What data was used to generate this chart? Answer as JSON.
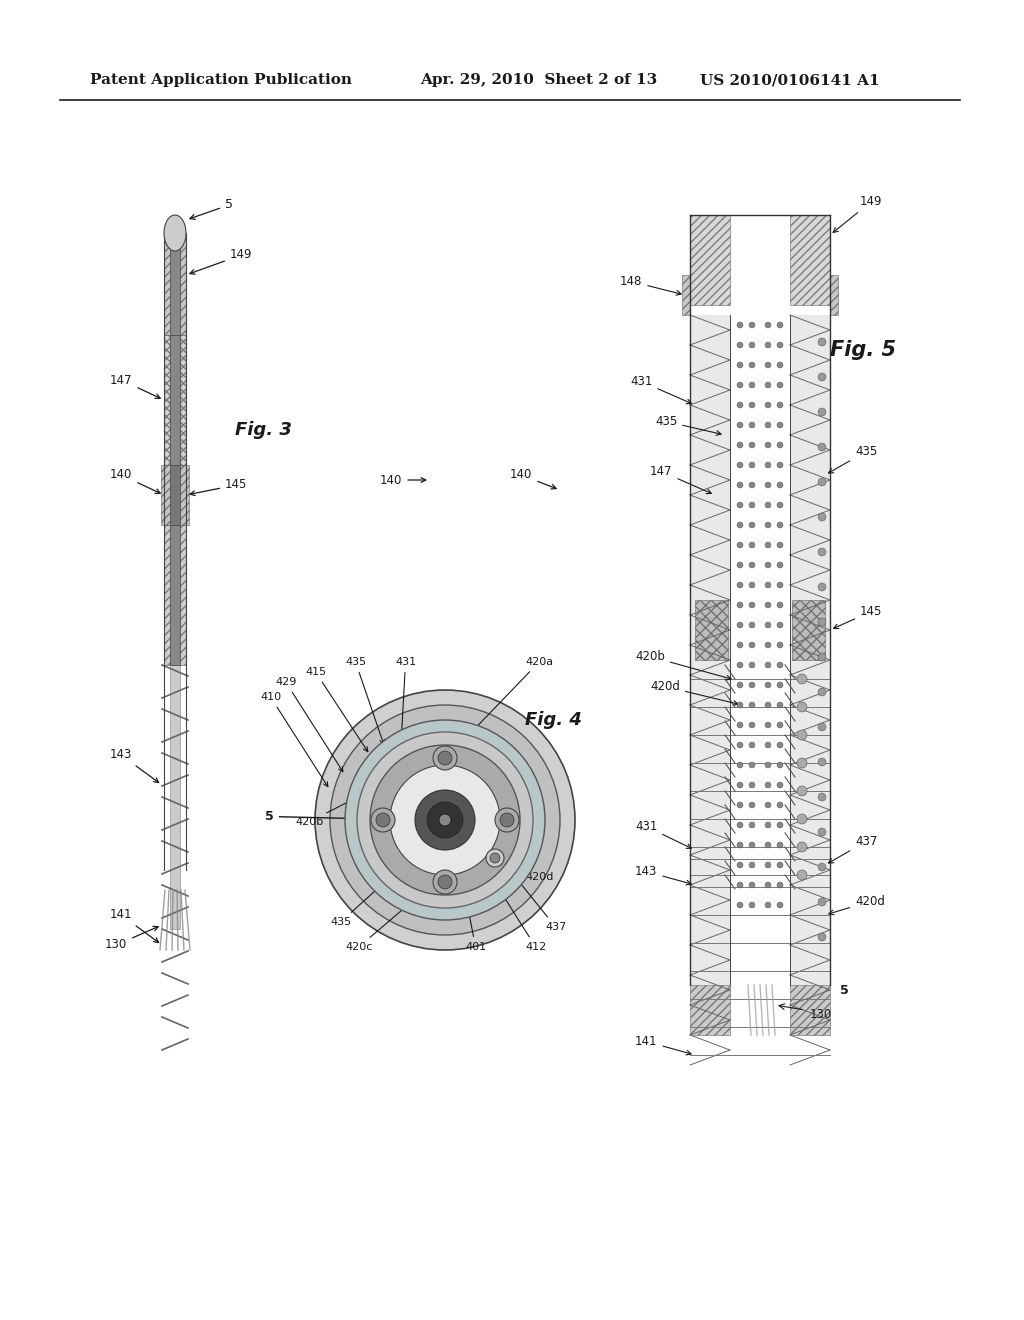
{
  "bg_color": "#ffffff",
  "header_left": "Patent Application Publication",
  "header_mid": "Apr. 29, 2010  Sheet 2 of 13",
  "header_right": "US 2010/0106141 A1",
  "fig3_label": "Fig. 3",
  "fig4_label": "Fig. 4",
  "fig5_label": "Fig. 5",
  "text_color": "#1a1a1a",
  "gray_light": "#c8c8c8",
  "gray_medium": "#888888",
  "gray_dark": "#444444",
  "hatch_color": "#888888"
}
